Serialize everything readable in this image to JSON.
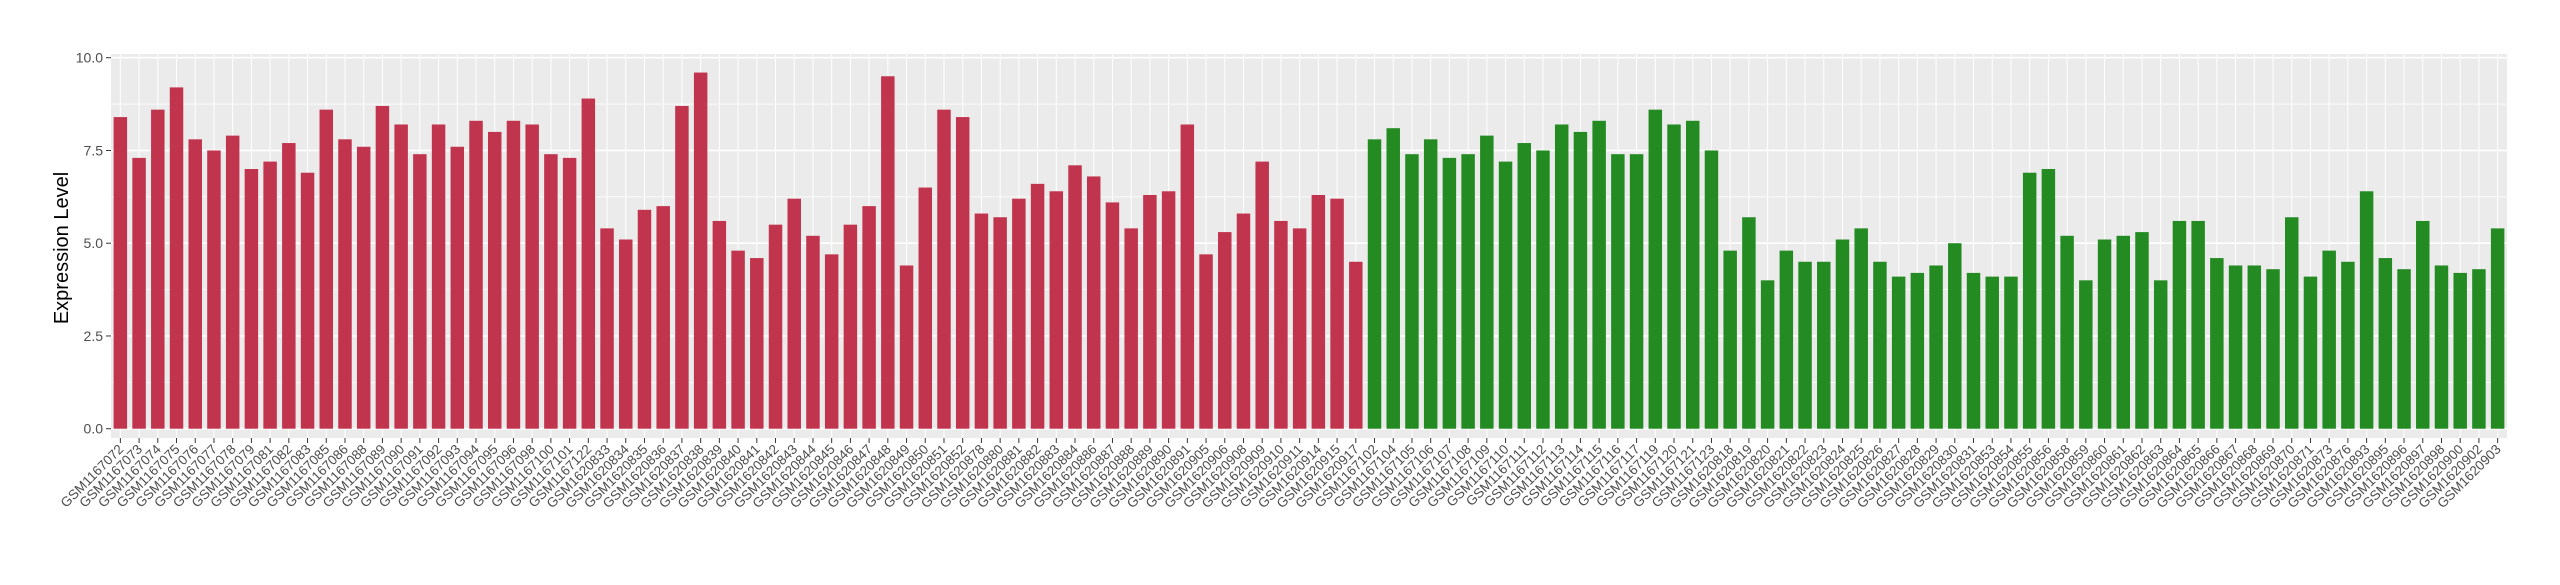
{
  "chart_data": {
    "type": "bar",
    "y_label": "Expression Level",
    "grid": true,
    "ylim": [
      -0.25,
      10.1
    ],
    "yticks": [
      {
        "value": 0,
        "label": "0.0"
      },
      {
        "value": 2.5,
        "label": "2.5"
      },
      {
        "value": 5,
        "label": "5.0"
      },
      {
        "value": 7.5,
        "label": "7.5"
      },
      {
        "value": 10,
        "label": "10.0"
      }
    ],
    "categories": [
      "GSM1167072",
      "GSM1167073",
      "GSM1167074",
      "GSM1167075",
      "GSM1167076",
      "GSM1167077",
      "GSM1167078",
      "GSM1167079",
      "GSM1167081",
      "GSM1167082",
      "GSM1167083",
      "GSM1167085",
      "GSM1167086",
      "GSM1167088",
      "GSM1167089",
      "GSM1167090",
      "GSM1167091",
      "GSM1167092",
      "GSM1167093",
      "GSM1167094",
      "GSM1167095",
      "GSM1167096",
      "GSM1167098",
      "GSM1167100",
      "GSM1167101",
      "GSM1167122",
      "GSM1620833",
      "GSM1620834",
      "GSM1620835",
      "GSM1620836",
      "GSM1620837",
      "GSM1620838",
      "GSM1620839",
      "GSM1620840",
      "GSM1620841",
      "GSM1620842",
      "GSM1620843",
      "GSM1620844",
      "GSM1620845",
      "GSM1620846",
      "GSM1620847",
      "GSM1620848",
      "GSM1620849",
      "GSM1620850",
      "GSM1620851",
      "GSM1620852",
      "GSM1620878",
      "GSM1620880",
      "GSM1620881",
      "GSM1620882",
      "GSM1620883",
      "GSM1620884",
      "GSM1620886",
      "GSM1620887",
      "GSM1620888",
      "GSM1620889",
      "GSM1620890",
      "GSM1620891",
      "GSM1620905",
      "GSM1620906",
      "GSM1620908",
      "GSM1620909",
      "GSM1620910",
      "GSM1620911",
      "GSM1620914",
      "GSM1620915",
      "GSM1620917",
      "GSM1167102",
      "GSM1167104",
      "GSM1167105",
      "GSM1167106",
      "GSM1167107",
      "GSM1167108",
      "GSM1167109",
      "GSM1167110",
      "GSM1167111",
      "GSM1167112",
      "GSM1167113",
      "GSM1167114",
      "GSM1167115",
      "GSM1167116",
      "GSM1167117",
      "GSM1167119",
      "GSM1167120",
      "GSM1167121",
      "GSM1167123",
      "GSM1620818",
      "GSM1620819",
      "GSM1620820",
      "GSM1620821",
      "GSM1620822",
      "GSM1620823",
      "GSM1620824",
      "GSM1620825",
      "GSM1620826",
      "GSM1620827",
      "GSM1620828",
      "GSM1620829",
      "GSM1620830",
      "GSM1620831",
      "GSM1620853",
      "GSM1620854",
      "GSM1620855",
      "GSM1620856",
      "GSM1620858",
      "GSM1620859",
      "GSM1620860",
      "GSM1620861",
      "GSM1620862",
      "GSM1620863",
      "GSM1620864",
      "GSM1620865",
      "GSM1620866",
      "GSM1620867",
      "GSM1620868",
      "GSM1620869",
      "GSM1620870",
      "GSM1620871",
      "GSM1620873",
      "GSM1620876",
      "GSM1620893",
      "GSM1620895",
      "GSM1620896",
      "GSM1620897",
      "GSM1620898",
      "GSM1620900",
      "GSM1620902",
      "GSM1620903"
    ],
    "values": [
      8.4,
      7.3,
      8.6,
      9.2,
      7.8,
      7.5,
      7.9,
      7.0,
      7.2,
      7.7,
      6.9,
      8.6,
      7.8,
      7.6,
      8.7,
      8.2,
      7.4,
      8.2,
      7.6,
      8.3,
      8.0,
      8.3,
      8.2,
      7.4,
      7.3,
      8.9,
      5.4,
      5.1,
      5.9,
      6.0,
      8.7,
      9.6,
      5.6,
      4.8,
      4.6,
      5.5,
      6.2,
      5.2,
      4.7,
      5.5,
      6.0,
      9.5,
      4.4,
      6.5,
      8.6,
      8.4,
      5.8,
      5.7,
      6.2,
      6.6,
      6.4,
      7.1,
      6.8,
      6.1,
      5.4,
      6.3,
      6.4,
      8.2,
      4.7,
      5.3,
      5.8,
      7.2,
      5.6,
      5.4,
      6.3,
      6.2,
      4.5,
      7.8,
      8.1,
      7.4,
      7.8,
      7.3,
      7.4,
      7.9,
      7.2,
      7.7,
      7.5,
      8.2,
      8.0,
      8.3,
      7.4,
      7.4,
      8.6,
      8.2,
      8.3,
      7.5,
      4.8,
      5.7,
      4.0,
      4.8,
      4.5,
      4.5,
      5.1,
      5.4,
      4.5,
      4.1,
      4.2,
      4.4,
      5.0,
      4.2,
      4.1,
      4.1,
      6.9,
      7.0,
      5.2,
      4.0,
      5.1,
      5.2,
      5.3,
      4.0,
      5.6,
      5.6,
      4.6,
      4.4,
      4.4,
      4.3,
      5.7,
      4.1,
      4.8,
      4.5,
      6.4,
      4.6,
      4.3,
      5.6,
      4.4,
      4.2,
      4.3,
      5.4
    ],
    "colors": [
      "#c1344e",
      "#c1344e",
      "#c1344e",
      "#c1344e",
      "#c1344e",
      "#c1344e",
      "#c1344e",
      "#c1344e",
      "#c1344e",
      "#c1344e",
      "#c1344e",
      "#c1344e",
      "#c1344e",
      "#c1344e",
      "#c1344e",
      "#c1344e",
      "#c1344e",
      "#c1344e",
      "#c1344e",
      "#c1344e",
      "#c1344e",
      "#c1344e",
      "#c1344e",
      "#c1344e",
      "#c1344e",
      "#c1344e",
      "#c1344e",
      "#c1344e",
      "#c1344e",
      "#c1344e",
      "#c1344e",
      "#c1344e",
      "#c1344e",
      "#c1344e",
      "#c1344e",
      "#c1344e",
      "#c1344e",
      "#c1344e",
      "#c1344e",
      "#c1344e",
      "#c1344e",
      "#c1344e",
      "#c1344e",
      "#c1344e",
      "#c1344e",
      "#c1344e",
      "#c1344e",
      "#c1344e",
      "#c1344e",
      "#c1344e",
      "#c1344e",
      "#c1344e",
      "#c1344e",
      "#c1344e",
      "#c1344e",
      "#c1344e",
      "#c1344e",
      "#c1344e",
      "#c1344e",
      "#c1344e",
      "#c1344e",
      "#c1344e",
      "#c1344e",
      "#c1344e",
      "#c1344e",
      "#c1344e",
      "#c1344e",
      "#248b23",
      "#248b23",
      "#248b23",
      "#248b23",
      "#248b23",
      "#248b23",
      "#248b23",
      "#248b23",
      "#248b23",
      "#248b23",
      "#248b23",
      "#248b23",
      "#248b23",
      "#248b23",
      "#248b23",
      "#248b23",
      "#248b23",
      "#248b23",
      "#248b23",
      "#248b23",
      "#248b23",
      "#248b23",
      "#248b23",
      "#248b23",
      "#248b23",
      "#248b23",
      "#248b23",
      "#248b23",
      "#248b23",
      "#248b23",
      "#248b23",
      "#248b23",
      "#248b23",
      "#248b23",
      "#248b23",
      "#248b23",
      "#248b23",
      "#248b23",
      "#248b23",
      "#248b23",
      "#248b23",
      "#248b23",
      "#248b23",
      "#248b23",
      "#248b23",
      "#248b23",
      "#248b23",
      "#248b23",
      "#248b23",
      "#248b23",
      "#248b23",
      "#248b23",
      "#248b23",
      "#248b23",
      "#248b23",
      "#248b23",
      "#248b23",
      "#248b23",
      "#248b23",
      "#248b23",
      "#248b23"
    ]
  }
}
